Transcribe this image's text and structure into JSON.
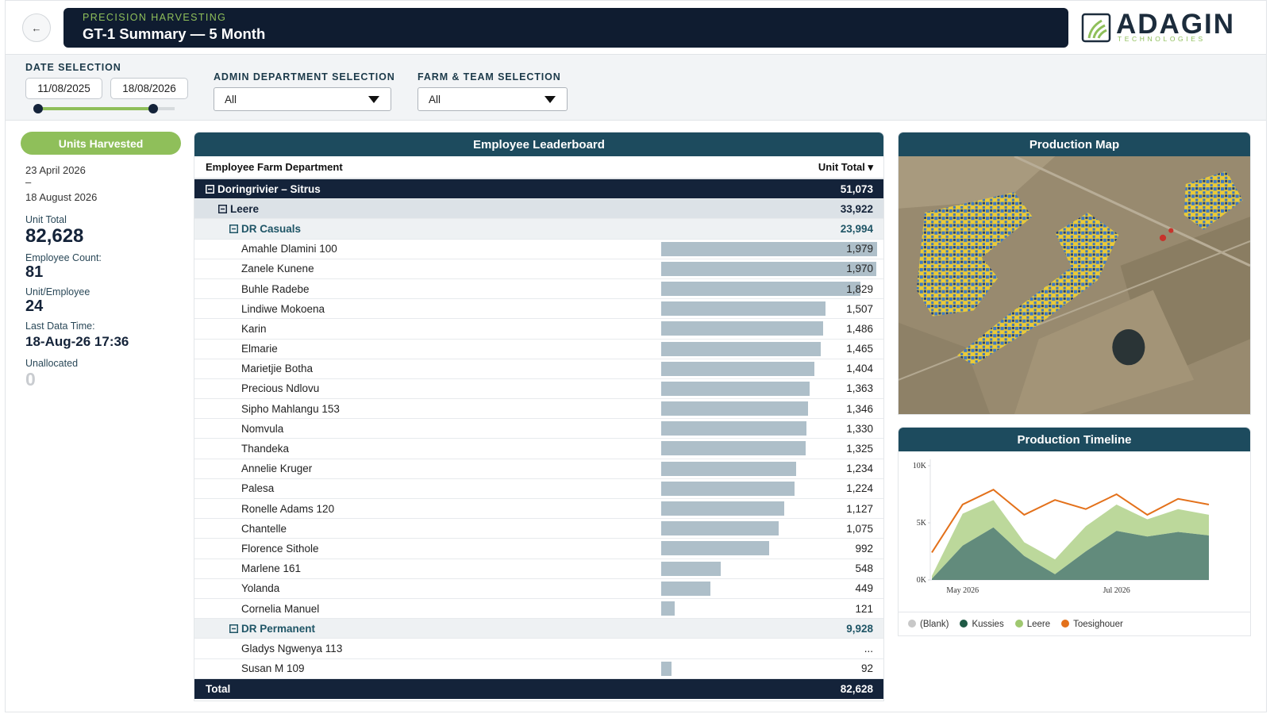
{
  "header": {
    "back": "←",
    "kicker": "PRECISION HARVESTING",
    "title": "GT-1 Summary — 5 Month",
    "logo": "ADAGIN",
    "logo_tagline": "TECHNOLOGIES"
  },
  "filters": {
    "date": {
      "label": "DATE SELECTION",
      "start": "11/08/2025",
      "end": "18/08/2026"
    },
    "admin_department": {
      "label": "ADMIN DEPARTMENT SELECTION",
      "value": "All"
    },
    "farm_team": {
      "label": "FARM & TEAM SELECTION",
      "value": "All"
    }
  },
  "summary": {
    "badge": "Units Harvested",
    "date_from": "23 April 2026",
    "date_separator": "–",
    "date_to": "18 August 2026",
    "stats": [
      {
        "label": "Unit Total",
        "value": "82,628"
      },
      {
        "label": "Employee Count:",
        "value": "81"
      },
      {
        "label": "Unit/Employee",
        "value": "24"
      },
      {
        "label": "Last Data Time:",
        "value": "18-Aug-26 17:36"
      },
      {
        "label": "Unallocated",
        "value": "0"
      }
    ]
  },
  "leaderboard": {
    "title": "Employee Leaderboard",
    "columns": [
      "Employee Farm Department",
      "Unit Total ▾"
    ],
    "groups": [
      {
        "name": "Doringrivier – Sitrus",
        "total": "51,073",
        "subgroups": [
          {
            "name": "Leere",
            "total": "33,922",
            "teams": [
              {
                "name": "DR Casuals",
                "total": "23,994",
                "employees": [
                  {
                    "name": "Amahle Dlamini 100",
                    "value": 1979,
                    "label": "1,979"
                  },
                  {
                    "name": "Zanele Kunene",
                    "value": 1970,
                    "label": "1,970"
                  },
                  {
                    "name": "Buhle Radebe",
                    "value": 1829,
                    "label": "1,829"
                  },
                  {
                    "name": "Lindiwe Mokoena",
                    "value": 1507,
                    "label": "1,507"
                  },
                  {
                    "name": "Karin",
                    "value": 1486,
                    "label": "1,486"
                  },
                  {
                    "name": "Elmarie",
                    "value": 1465,
                    "label": "1,465"
                  },
                  {
                    "name": "Marietjie Botha",
                    "value": 1404,
                    "label": "1,404"
                  },
                  {
                    "name": "Precious Ndlovu",
                    "value": 1363,
                    "label": "1,363"
                  },
                  {
                    "name": "Sipho Mahlangu 153",
                    "value": 1346,
                    "label": "1,346"
                  },
                  {
                    "name": "Nomvula",
                    "value": 1330,
                    "label": "1,330"
                  },
                  {
                    "name": "Thandeka",
                    "value": 1325,
                    "label": "1,325"
                  },
                  {
                    "name": "Annelie Kruger",
                    "value": 1234,
                    "label": "1,234"
                  },
                  {
                    "name": "Palesa",
                    "value": 1224,
                    "label": "1,224"
                  },
                  {
                    "name": "Ronelle Adams 120",
                    "value": 1127,
                    "label": "1,127"
                  },
                  {
                    "name": "Chantelle",
                    "value": 1075,
                    "label": "1,075"
                  },
                  {
                    "name": "Florence Sithole",
                    "value": 992
                  },
                  {
                    "name": "Marlene 161",
                    "value": 548
                  },
                  {
                    "name": "Yolanda",
                    "value": 449
                  },
                  {
                    "name": "Cornelia Manuel",
                    "value": 121
                  }
                ]
              },
              {
                "name": "DR Permanent",
                "total": "9,928",
                "employees": [
                  {
                    "name": "Gladys Ngwenya 113",
                    "value": null,
                    "label": "..."
                  },
                  {
                    "name": "Susan M 109",
                    "value": 92
                  }
                ]
              }
            ]
          }
        ]
      }
    ],
    "total_label": "Total",
    "total": "82,628"
  },
  "map": {
    "title": "Production Map"
  },
  "timeline": {
    "title": "Production Timeline"
  },
  "chart_data": {
    "type": "area",
    "categories": [
      null,
      "May 2026",
      null,
      null,
      null,
      null,
      "Jul 2026",
      null,
      null,
      null
    ],
    "series": [
      {
        "name": "(Blank)",
        "color": "#c8c8c8",
        "kind": "area",
        "values": [
          null,
          null,
          null,
          null,
          null,
          null,
          null,
          null,
          null,
          null
        ]
      },
      {
        "name": "Kussies",
        "color": "#1f5a45",
        "kind": "area",
        "values": [
          100,
          3000,
          4600,
          2100,
          500,
          2500,
          4300,
          3800,
          4200,
          3900
        ]
      },
      {
        "name": "Leere",
        "color": "#9fc870",
        "kind": "area",
        "values": [
          250,
          2800,
          2400,
          1200,
          1300,
          2200,
          2300,
          1500,
          2000,
          1800
        ]
      },
      {
        "name": "Toesighouer",
        "color": "#e3711b",
        "kind": "line",
        "values": [
          2400,
          6600,
          7900,
          5700,
          7000,
          6200,
          7500,
          5700,
          7100,
          6600
        ]
      }
    ],
    "stacked": true,
    "ylim": [
      0,
      10000
    ],
    "yticks": [
      {
        "value": 0,
        "label": "0K"
      },
      {
        "value": 5000,
        "label": "5K"
      },
      {
        "value": 10000,
        "label": "10K"
      }
    ],
    "grid": false,
    "legend": "bottom"
  }
}
